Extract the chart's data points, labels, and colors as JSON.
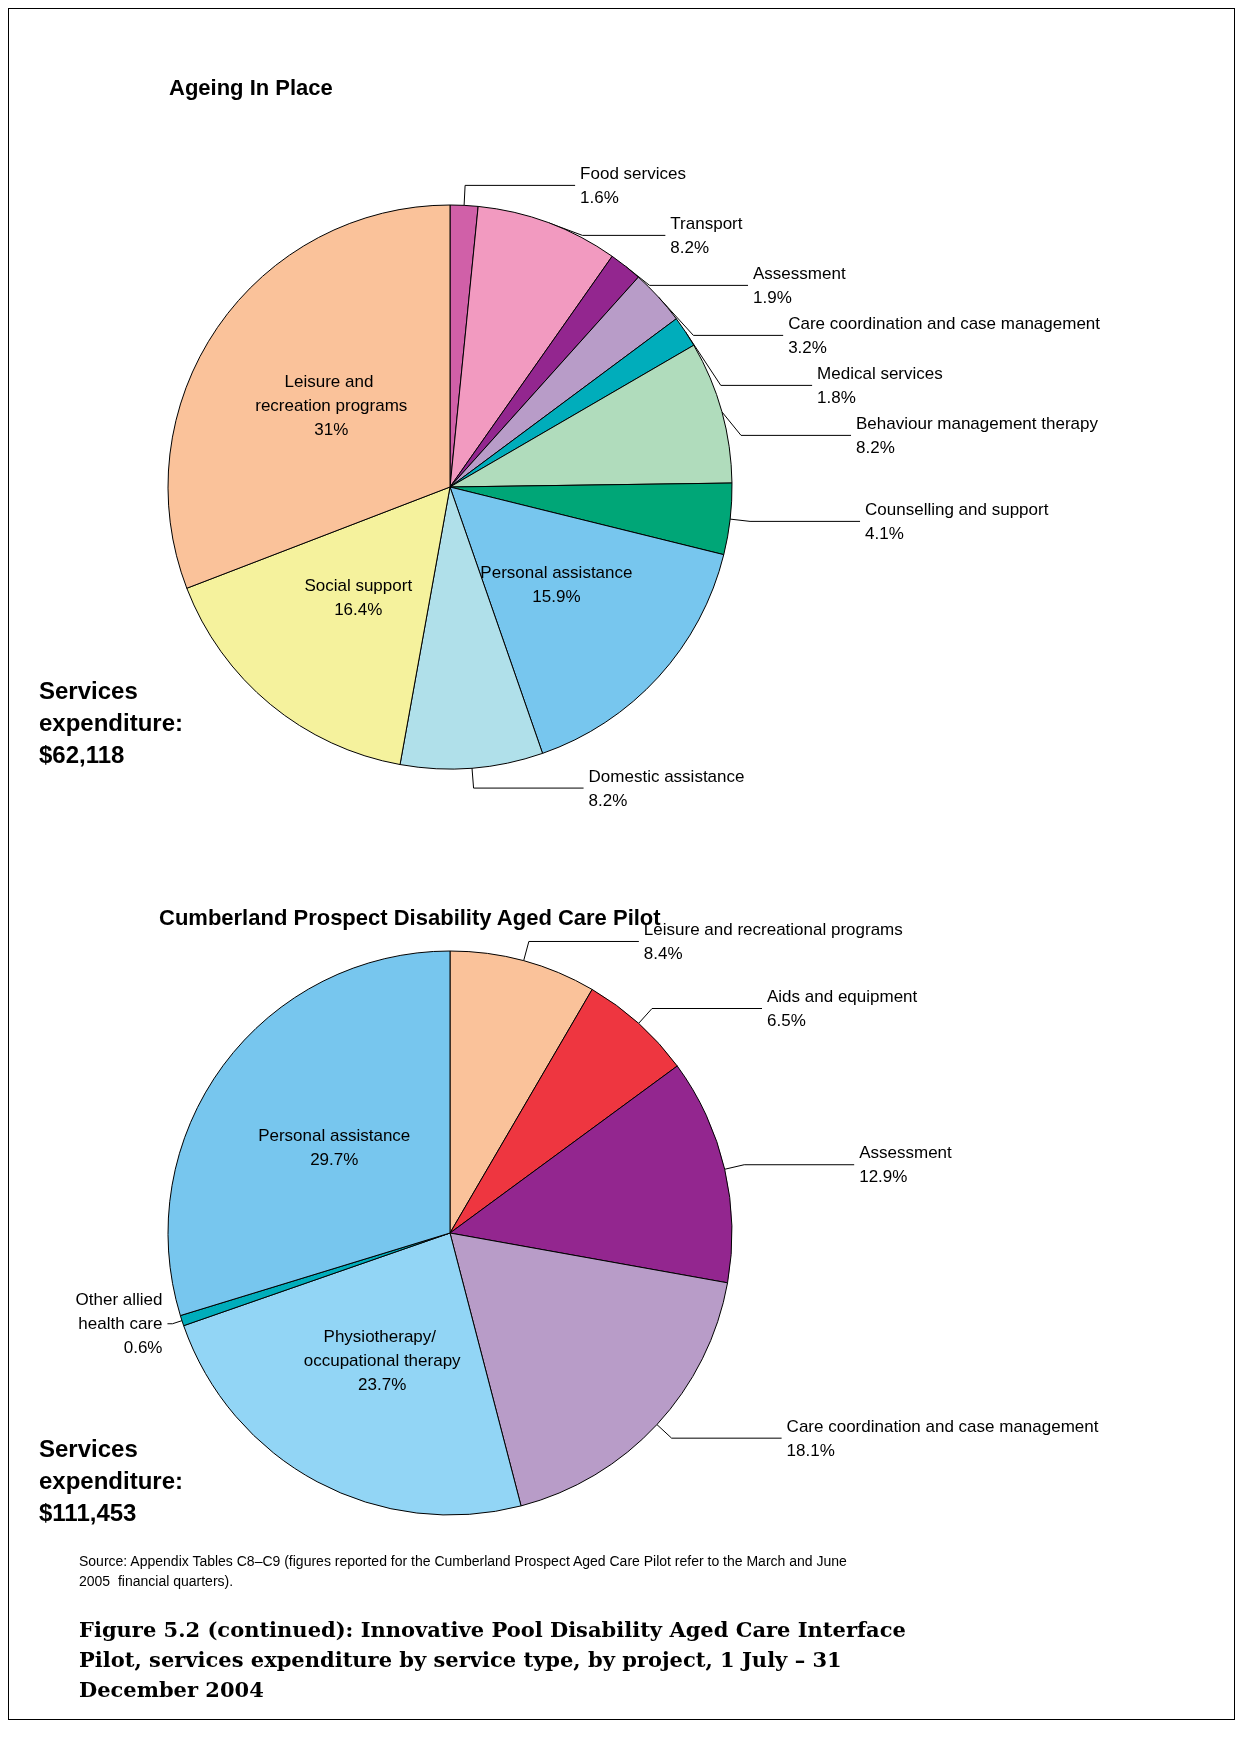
{
  "chart_data": [
    {
      "type": "pie",
      "title": "Ageing In Place",
      "categories": [
        "Food services",
        "Transport",
        "Assessment",
        "Care coordination and case management",
        "Medical services",
        "Behaviour management therapy",
        "Counselling and support",
        "Personal assistance",
        "Domestic assistance",
        "Social support",
        "Leisure and recreation programs"
      ],
      "values": [
        1.6,
        8.2,
        1.9,
        3.2,
        1.8,
        8.2,
        4.1,
        15.9,
        8.2,
        16.4,
        31
      ],
      "value_labels": [
        "1.6%",
        "8.2%",
        "1.9%",
        "3.2%",
        "1.8%",
        "8.2%",
        "4.1%",
        "15.9%",
        "8.2%",
        "16.4%",
        "31%"
      ],
      "colors": [
        "#d060a8",
        "#f29ac0",
        "#93268f",
        "#b89cc8",
        "#00adbb",
        "#b0dcbc",
        "#00a677",
        "#77c6ee",
        "#b0e0ea",
        "#f5f29d",
        "#fac29a"
      ],
      "legend": false,
      "annotations": [
        "Services expenditure: $62,118"
      ]
    },
    {
      "type": "pie",
      "title": "Cumberland Prospect Disability Aged Care Pilot",
      "categories": [
        "Leisure and recreational programs",
        "Aids and equipment",
        "Assessment",
        "Care coordination and case management",
        "Physiotherapy/ occupational therapy",
        "Other allied health care",
        "Personal assistance"
      ],
      "values": [
        8.4,
        6.5,
        12.9,
        18.1,
        23.7,
        0.6,
        29.7
      ],
      "value_labels": [
        "8.4%",
        "6.5%",
        "12.9%",
        "18.1%",
        "23.7%",
        "0.6%",
        "29.7%"
      ],
      "colors": [
        "#fac29a",
        "#ee3640",
        "#93268f",
        "#b89cc8",
        "#92d5f5",
        "#00adbb",
        "#77c6ee"
      ],
      "legend": false,
      "annotations": [
        "Services expenditure: $111,453",
        "Source: Appendix Tables C8–C9 (figures reported for the Cumberland Prospect Aged Care Pilot refer to the March and June 2005  financial quarters).",
        "Figure 5.2 (continued): Innovative Pool Disability Aged Care Interface Pilot, services expenditure by service type, by project, 1 July – 31 December 2004"
      ]
    }
  ]
}
